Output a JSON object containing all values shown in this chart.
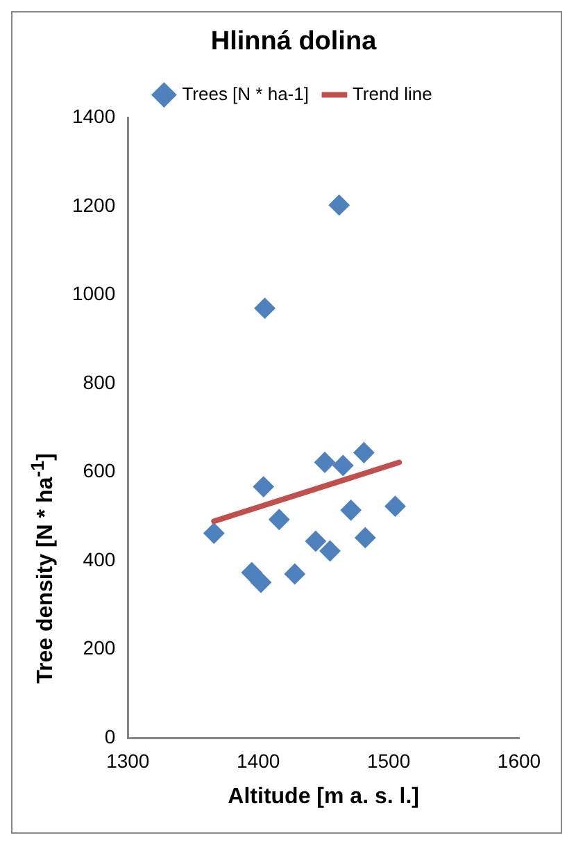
{
  "chart_data": {
    "type": "scatter",
    "title": "Hlinná dolina",
    "xlabel": "Altitude [m a. s. l.]",
    "ylabel": "Tree density [N * ha$^{-1}$]",
    "series": [
      {
        "name": "Trees [N * ha-1]",
        "type": "scatter",
        "color": "#4f81bd",
        "marker": "diamond",
        "x": [
          1366,
          1405,
          1462,
          1395,
          1402,
          1428,
          1404,
          1416,
          1444,
          1455,
          1451,
          1465,
          1481,
          1471,
          1482,
          1505
        ],
        "values": [
          462,
          970,
          1203,
          373,
          351,
          370,
          567,
          493,
          444,
          422,
          622,
          615,
          644,
          514,
          452,
          523
        ]
      },
      {
        "name": "Trend line",
        "type": "line",
        "color": "#c0504d",
        "marker": "none",
        "x": [
          1366,
          1508
        ],
        "values": [
          489,
          622
        ]
      }
    ],
    "xlim": [
      1300,
      1600
    ],
    "xticks": [
      1300,
      1400,
      1500,
      1600
    ],
    "ylim": [
      0,
      1400
    ],
    "yticks": [
      0,
      200,
      400,
      600,
      800,
      1000,
      1200,
      1400
    ],
    "grid": false,
    "legend": "top"
  }
}
